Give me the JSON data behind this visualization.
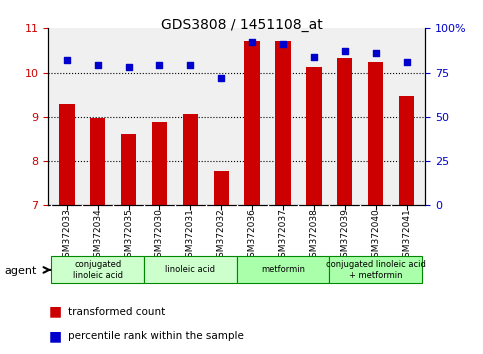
{
  "title": "GDS3808 / 1451108_at",
  "samples": [
    "GSM372033",
    "GSM372034",
    "GSM372035",
    "GSM372030",
    "GSM372031",
    "GSM372032",
    "GSM372036",
    "GSM372037",
    "GSM372038",
    "GSM372039",
    "GSM372040",
    "GSM372041"
  ],
  "bar_values": [
    9.28,
    8.98,
    8.62,
    8.88,
    9.07,
    7.78,
    10.72,
    10.72,
    10.12,
    10.33,
    10.23,
    9.48
  ],
  "dot_values": [
    10.45,
    10.38,
    10.32,
    10.37,
    10.38,
    10.14,
    10.73,
    10.72,
    10.57,
    10.62,
    10.6,
    10.5
  ],
  "bar_color": "#cc0000",
  "dot_color": "#0000cc",
  "ylim_left": [
    7,
    11
  ],
  "ylim_right": [
    0,
    100
  ],
  "yticks_left": [
    7,
    8,
    9,
    10,
    11
  ],
  "yticks_right": [
    0,
    25,
    50,
    75,
    100
  ],
  "ytick_labels_right": [
    "0",
    "25",
    "50",
    "75",
    "100%"
  ],
  "groups": [
    {
      "label": "conjugated\nlinoleic acid",
      "start": 0,
      "end": 3,
      "color": "#ccffcc"
    },
    {
      "label": "linoleic acid",
      "start": 3,
      "end": 6,
      "color": "#ccffcc"
    },
    {
      "label": "metformin",
      "start": 6,
      "end": 9,
      "color": "#aaffaa"
    },
    {
      "label": "conjugated linoleic acid\n+ metformin",
      "start": 9,
      "end": 12,
      "color": "#aaffaa"
    }
  ],
  "agent_label": "agent",
  "legend_bar_label": "transformed count",
  "legend_dot_label": "percentile rank within the sample",
  "bg_color": "#ffffff",
  "plot_bg_color": "#f0f0f0",
  "grid_color": "#000000",
  "title_color": "#000000",
  "left_tick_color": "#cc0000",
  "right_tick_color": "#0000cc"
}
